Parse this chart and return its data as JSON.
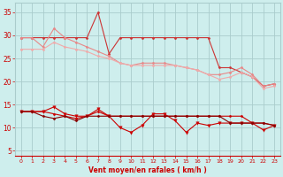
{
  "bg_color": "#ceeeed",
  "grid_color": "#aacccc",
  "xlabel": "Vent moyen/en rafales ( km/h )",
  "xlabel_color": "#cc0000",
  "tick_color": "#cc0000",
  "xlim": [
    -0.5,
    23.5
  ],
  "ylim": [
    4,
    37
  ],
  "yticks": [
    5,
    10,
    15,
    20,
    25,
    30,
    35
  ],
  "xticks": [
    0,
    1,
    2,
    3,
    4,
    5,
    6,
    7,
    8,
    9,
    10,
    11,
    12,
    13,
    14,
    15,
    16,
    17,
    18,
    19,
    20,
    21,
    22,
    23
  ],
  "series": [
    {
      "x": [
        0,
        1,
        2,
        3,
        4,
        5,
        6,
        7,
        8,
        9,
        10,
        11,
        12,
        13,
        14,
        15,
        16,
        17,
        18,
        19,
        20,
        21,
        22,
        23
      ],
      "y": [
        29.5,
        29.5,
        29.5,
        29.5,
        29.5,
        29.5,
        29.5,
        35.0,
        26.0,
        29.5,
        29.5,
        29.5,
        29.5,
        29.5,
        29.5,
        29.5,
        29.5,
        29.5,
        23.0,
        23.0,
        22.0,
        21.0,
        19.0,
        19.5
      ],
      "color": "#cc3333",
      "marker": "D",
      "markersize": 1.5,
      "linewidth": 0.8,
      "alpha": 1.0
    },
    {
      "x": [
        0,
        1,
        2,
        3,
        4,
        5,
        6,
        7,
        8,
        9,
        10,
        11,
        12,
        13,
        14,
        15,
        16,
        17,
        18,
        19,
        20,
        21,
        22,
        23
      ],
      "y": [
        29.5,
        29.5,
        27.5,
        31.5,
        29.5,
        28.5,
        27.5,
        26.5,
        25.5,
        24.0,
        23.5,
        24.0,
        24.0,
        24.0,
        23.5,
        23.0,
        22.5,
        21.5,
        21.5,
        22.0,
        23.0,
        21.5,
        19.0,
        19.5
      ],
      "color": "#e88888",
      "marker": "D",
      "markersize": 1.5,
      "linewidth": 0.8,
      "alpha": 1.0
    },
    {
      "x": [
        0,
        1,
        2,
        3,
        4,
        5,
        6,
        7,
        8,
        9,
        10,
        11,
        12,
        13,
        14,
        15,
        16,
        17,
        18,
        19,
        20,
        21,
        22,
        23
      ],
      "y": [
        27.0,
        27.0,
        27.0,
        28.5,
        27.5,
        27.0,
        26.5,
        25.5,
        25.0,
        24.0,
        23.5,
        23.5,
        23.5,
        23.5,
        23.5,
        23.0,
        22.5,
        21.5,
        20.5,
        21.0,
        22.0,
        21.0,
        18.5,
        19.0
      ],
      "color": "#f0aaaa",
      "marker": "D",
      "markersize": 1.5,
      "linewidth": 0.8,
      "alpha": 1.0
    },
    {
      "x": [
        0,
        1,
        2,
        3,
        4,
        5,
        6,
        7,
        8,
        9,
        10,
        11,
        12,
        13,
        14,
        15,
        16,
        17,
        18,
        19,
        20,
        21,
        22,
        23
      ],
      "y": [
        13.5,
        13.5,
        13.5,
        14.5,
        13.0,
        12.5,
        12.5,
        14.0,
        12.5,
        10.0,
        9.0,
        10.5,
        13.0,
        13.0,
        11.5,
        9.0,
        11.0,
        10.5,
        11.0,
        11.0,
        11.0,
        11.0,
        9.5,
        10.5
      ],
      "color": "#cc0000",
      "marker": "v",
      "markersize": 2.5,
      "linewidth": 0.8,
      "alpha": 1.0
    },
    {
      "x": [
        0,
        1,
        2,
        3,
        4,
        5,
        6,
        7,
        8,
        9,
        10,
        11,
        12,
        13,
        14,
        15,
        16,
        17,
        18,
        19,
        20,
        21,
        22,
        23
      ],
      "y": [
        13.5,
        13.5,
        13.5,
        13.0,
        12.5,
        12.0,
        12.5,
        13.5,
        12.5,
        12.5,
        12.5,
        12.5,
        12.5,
        12.5,
        12.5,
        12.5,
        12.5,
        12.5,
        12.5,
        12.5,
        12.5,
        11.0,
        11.0,
        10.5
      ],
      "color": "#cc0000",
      "marker": "D",
      "markersize": 1.5,
      "linewidth": 0.8,
      "alpha": 1.0
    },
    {
      "x": [
        0,
        1,
        2,
        3,
        4,
        5,
        6,
        7,
        8,
        9,
        10,
        11,
        12,
        13,
        14,
        15,
        16,
        17,
        18,
        19,
        20,
        21,
        22,
        23
      ],
      "y": [
        13.5,
        13.5,
        12.5,
        12.0,
        12.5,
        11.5,
        12.5,
        12.5,
        12.5,
        12.5,
        12.5,
        12.5,
        12.5,
        12.5,
        12.5,
        12.5,
        12.5,
        12.5,
        12.5,
        11.0,
        11.0,
        11.0,
        11.0,
        10.5
      ],
      "color": "#880000",
      "marker": "D",
      "markersize": 1.5,
      "linewidth": 0.8,
      "alpha": 1.0
    }
  ]
}
